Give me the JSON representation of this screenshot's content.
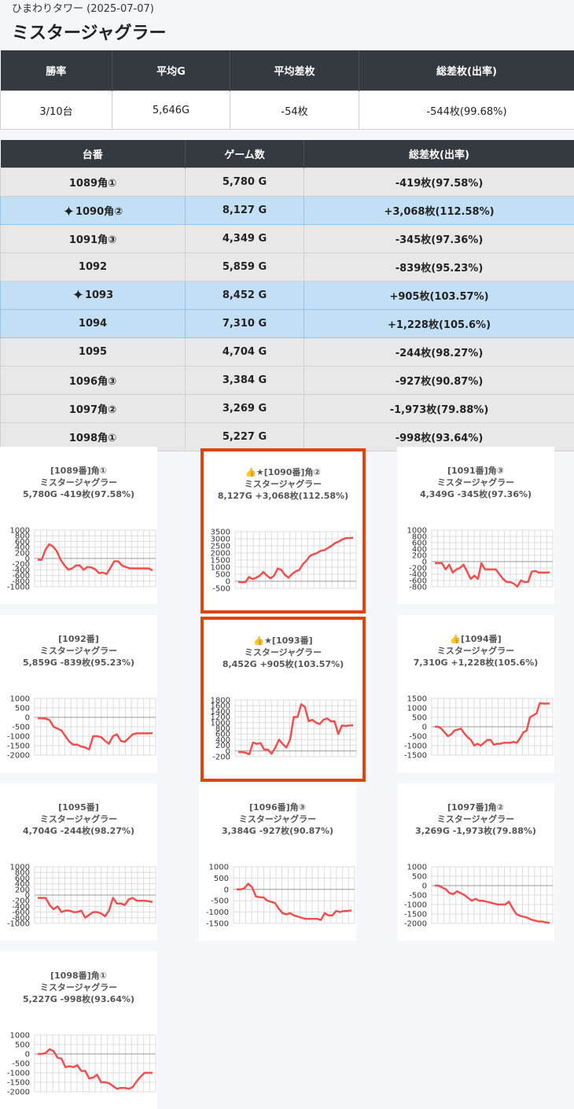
{
  "header": {
    "subtitle": "ひまわりタワー (2025-07-07)",
    "title": "ミスタージャグラー"
  },
  "summary": {
    "headers": [
      "勝率",
      "平均G",
      "平均差枚",
      "総差枚(出率)"
    ],
    "values": [
      "3/10台",
      "5,646G",
      "-54枚",
      "-544枚(99.68%)"
    ]
  },
  "machines": {
    "headers": [
      "台番",
      "ゲーム数",
      "総差枚(出率)"
    ],
    "rows": [
      {
        "num": "1089角①",
        "games": "5,780 G",
        "diff": "-419枚(97.58%)"
      },
      {
        "num": "1090角②",
        "games": "8,127 G",
        "diff": "+3,068枚(112.58%)"
      },
      {
        "num": "1091角③",
        "games": "4,349 G",
        "diff": "-345枚(97.36%)"
      },
      {
        "num": "1092",
        "games": "5,859 G",
        "diff": "-839枚(95.23%)"
      },
      {
        "num": "1093",
        "games": "8,452 G",
        "diff": "+905枚(103.57%)"
      },
      {
        "num": "1094",
        "games": "7,310 G",
        "diff": "+1,228枚(105.6%)"
      },
      {
        "num": "1095",
        "games": "4,704 G",
        "diff": "-244枚(98.27%)"
      },
      {
        "num": "1096角③",
        "games": "3,384 G",
        "diff": "-927枚(90.87%)"
      },
      {
        "num": "1097角②",
        "games": "3,269 G",
        "diff": "-1,973枚(79.88%)"
      },
      {
        "num": "1098角①",
        "games": "5,227 G",
        "diff": "-998枚(93.64%)"
      }
    ]
  },
  "colors": {
    "line": "#f05050",
    "highlight_border": "#e0440e",
    "highlight_row": "#c3dff5",
    "header_bg": "#343a40"
  },
  "chart_data": [
    {
      "type": "line",
      "title": [
        "[1089番]角①",
        "ミスタージャグラー",
        "5,780G -419枚(97.58%)"
      ],
      "yticks": [
        1000,
        800,
        600,
        400,
        200,
        0,
        -200,
        -400,
        -600,
        -800,
        -1000
      ],
      "ylim": [
        -1000,
        1000
      ],
      "values": [
        -50,
        -50,
        300,
        500,
        420,
        250,
        -50,
        -250,
        -400,
        -350,
        -250,
        -250,
        -400,
        -300,
        -320,
        -380,
        -520,
        -500,
        -550,
        -330,
        -100,
        -100,
        -250,
        -300,
        -350,
        -350,
        -350,
        -350,
        -350,
        -350,
        -419
      ]
    },
    {
      "type": "line",
      "title": [
        "👍★[1090番]角②",
        "ミスタージャグラー",
        "8,127G +3,068枚(112.58%)"
      ],
      "yticks": [
        3500,
        3000,
        2500,
        2000,
        1500,
        1000,
        500,
        0,
        -500
      ],
      "ylim": [
        -500,
        3500
      ],
      "values": [
        -50,
        -80,
        -60,
        300,
        150,
        250,
        400,
        650,
        400,
        200,
        400,
        900,
        800,
        450,
        250,
        500,
        700,
        800,
        1200,
        1450,
        1800,
        1900,
        2000,
        2150,
        2200,
        2350,
        2500,
        2700,
        2800,
        2950,
        3050,
        3050,
        3068
      ]
    },
    {
      "type": "line",
      "title": [
        "[1091番]角③",
        "ミスタージャグラー",
        "4,349G -345枚(97.36%)"
      ],
      "yticks": [
        1000,
        800,
        600,
        400,
        200,
        0,
        -200,
        -400,
        -600,
        -800
      ],
      "ylim": [
        -800,
        1000
      ],
      "values": [
        -50,
        -50,
        -50,
        -250,
        -100,
        -350,
        -250,
        -200,
        -100,
        -320,
        -550,
        -450,
        -550,
        -50,
        -250,
        -250,
        -250,
        -250,
        -400,
        -550,
        -650,
        -650,
        -700,
        -800,
        -600,
        -650,
        -650,
        -320,
        -300,
        -350,
        -350,
        -350,
        -345
      ]
    },
    {
      "type": "line",
      "title": [
        "[1092番]",
        "ミスタージャグラー",
        "5,859G -839枚(95.23%)"
      ],
      "yticks": [
        1000,
        500,
        0,
        -500,
        -1000,
        -1500,
        -2000
      ],
      "ylim": [
        -2000,
        1000
      ],
      "values": [
        -50,
        -50,
        -70,
        -150,
        -500,
        -600,
        -700,
        -1000,
        -1300,
        -1450,
        -1450,
        -1550,
        -1600,
        -1700,
        -1000,
        -1000,
        -1050,
        -1250,
        -1400,
        -1000,
        -900,
        -1250,
        -1300,
        -1100,
        -900,
        -850,
        -850,
        -850,
        -850,
        -839
      ]
    },
    {
      "type": "line",
      "title": [
        "👍★[1093番]",
        "ミスタージャグラー",
        "8,452G +905枚(103.57%)"
      ],
      "yticks": [
        1800,
        1600,
        1400,
        1200,
        1000,
        800,
        600,
        400,
        200,
        0,
        -200
      ],
      "ylim": [
        -200,
        1800
      ],
      "values": [
        -40,
        -40,
        -60,
        -120,
        300,
        250,
        280,
        50,
        50,
        -100,
        120,
        400,
        250,
        120,
        400,
        1200,
        1200,
        1650,
        1550,
        1050,
        1100,
        1000,
        950,
        1100,
        1150,
        1050,
        1050,
        600,
        900,
        880,
        900,
        905
      ]
    },
    {
      "type": "line",
      "title": [
        "👍[1094番]",
        "ミスタージャグラー",
        "7,310G +1,228枚(105.6%)"
      ],
      "yticks": [
        1500,
        1000,
        500,
        0,
        -500,
        -1000,
        -1500
      ],
      "ylim": [
        -1500,
        1500
      ],
      "values": [
        0,
        0,
        -100,
        -300,
        -500,
        -400,
        -200,
        -150,
        -100,
        -350,
        -550,
        -700,
        -1000,
        -900,
        -1000,
        -850,
        -700,
        -700,
        -950,
        -900,
        -900,
        -850,
        -850,
        -850,
        -800,
        -850,
        -600,
        -300,
        -200,
        500,
        600,
        700,
        1250,
        1230,
        1230,
        1228
      ]
    },
    {
      "type": "line",
      "title": [
        "[1095番]",
        "ミスタージャグラー",
        "4,704G -244枚(98.27%)"
      ],
      "yticks": [
        1000,
        800,
        600,
        400,
        200,
        0,
        -200,
        -400,
        -600,
        -800,
        -1000
      ],
      "ylim": [
        -1000,
        1000
      ],
      "values": [
        -100,
        -100,
        -100,
        -350,
        -500,
        -400,
        -600,
        -550,
        -550,
        -600,
        -600,
        -550,
        -800,
        -700,
        -600,
        -600,
        -650,
        -750,
        -550,
        -100,
        -300,
        -300,
        -350,
        -150,
        -100,
        -200,
        -200,
        -200,
        -220,
        -244
      ]
    },
    {
      "type": "line",
      "title": [
        "[1096番]角③",
        "ミスタージャグラー",
        "3,384G -927枚(90.87%)"
      ],
      "yticks": [
        1000,
        500,
        0,
        -500,
        -1000,
        -1500
      ],
      "ylim": [
        -1500,
        1000
      ],
      "values": [
        0,
        0,
        50,
        250,
        100,
        -300,
        -350,
        -350,
        -500,
        -550,
        -600,
        -850,
        -1050,
        -1100,
        -1050,
        -1150,
        -1200,
        -1250,
        -1300,
        -1300,
        -1300,
        -1300,
        -1350,
        -1050,
        -1150,
        -1150,
        -950,
        -1000,
        -950,
        -950,
        -927
      ]
    },
    {
      "type": "line",
      "title": [
        "[1097番]角②",
        "ミスタージャグラー",
        "3,269G -1,973枚(79.88%)"
      ],
      "yticks": [
        1000,
        500,
        0,
        -500,
        -1000,
        -1500,
        -2000
      ],
      "ylim": [
        -2000,
        1000
      ],
      "values": [
        0,
        0,
        -100,
        -200,
        -400,
        -450,
        -300,
        -400,
        -500,
        -650,
        -800,
        -700,
        -800,
        -800,
        -850,
        -900,
        -950,
        -1000,
        -1000,
        -1000,
        -850,
        -1200,
        -1500,
        -1600,
        -1650,
        -1700,
        -1800,
        -1850,
        -1900,
        -1900,
        -1950,
        -1973
      ]
    },
    {
      "type": "line",
      "title": [
        "[1098番]角①",
        "ミスタージャグラー",
        "5,227G -998枚(93.64%)"
      ],
      "yticks": [
        1000,
        500,
        0,
        -500,
        -1000,
        -1500,
        -2000
      ],
      "ylim": [
        -2000,
        1000
      ],
      "values": [
        0,
        0,
        50,
        250,
        150,
        -200,
        -250,
        -700,
        -650,
        -700,
        -600,
        -900,
        -900,
        -1300,
        -1250,
        -1100,
        -1500,
        -1500,
        -1550,
        -1700,
        -1850,
        -1800,
        -1800,
        -1850,
        -1750,
        -1450,
        -1200,
        -1000,
        -1000,
        -998
      ]
    }
  ]
}
